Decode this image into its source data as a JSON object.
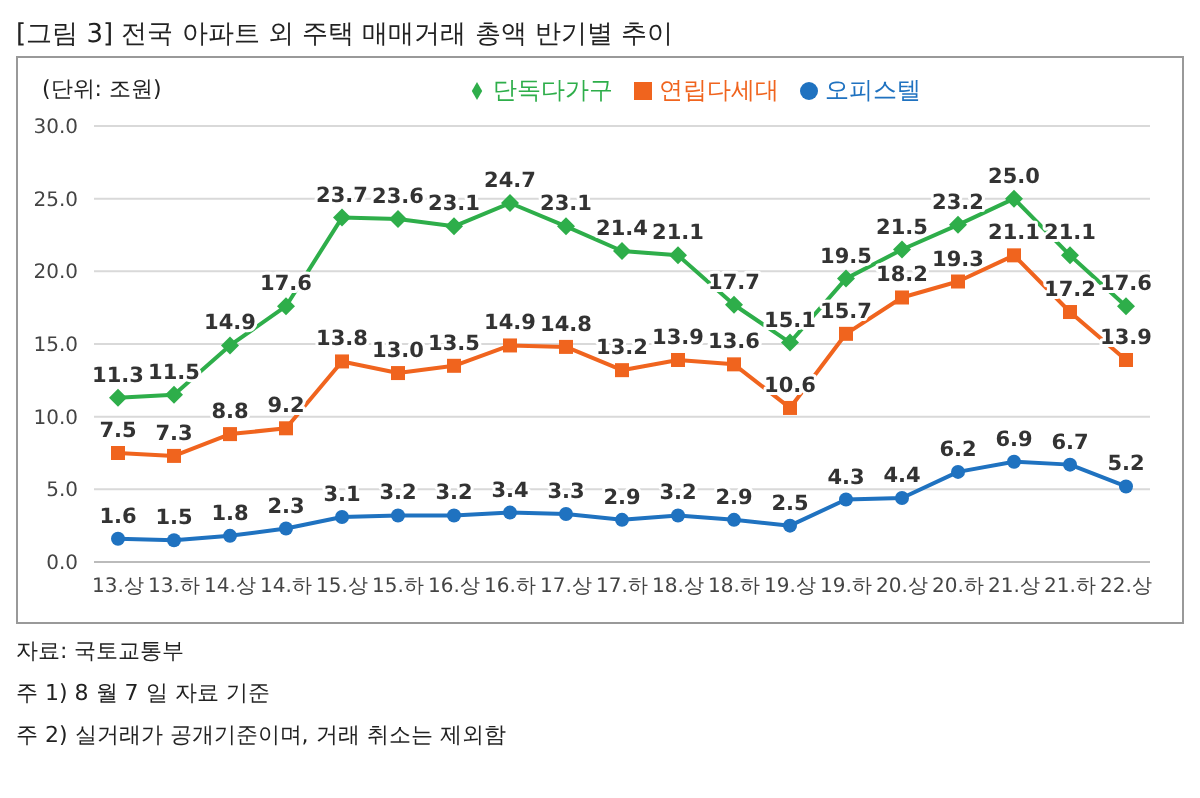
{
  "chart_data": {
    "type": "line",
    "title": "[그림 3] 전국 아파트 외 주택 매매거래 총액 반기별 추이",
    "annotations": [
      "(단위: 조원)",
      "자료: 국토교통부",
      "주 1) 8 월 7 일 자료 기준",
      "주 2) 실거래가 공개기준이며, 거래 취소는 제외함"
    ],
    "categories": [
      "13.상",
      "13.하",
      "14.상",
      "14.하",
      "15.상",
      "15.하",
      "16.상",
      "16.하",
      "17.상",
      "17.하",
      "18.상",
      "18.하",
      "19.상",
      "19.하",
      "20.상",
      "20.하",
      "21.상",
      "21.하",
      "22.상"
    ],
    "series": [
      {
        "name": "단독다가구",
        "color": "#2eae4a",
        "marker": "diamond",
        "values": [
          11.3,
          11.5,
          14.9,
          17.6,
          23.7,
          23.6,
          23.1,
          24.7,
          23.1,
          21.4,
          21.1,
          17.7,
          15.1,
          19.5,
          21.5,
          23.2,
          25.0,
          21.1,
          17.6
        ],
        "value_labels": [
          "11.3",
          "11.5",
          "14.9",
          "17.6",
          "23.7",
          "23.6",
          "23.1",
          "24.7",
          "23.1",
          "21.4",
          "21.1",
          "17.7",
          "15.1",
          "19.5",
          "21.5",
          "23.2",
          "25.0",
          "21.1",
          "17.6"
        ]
      },
      {
        "name": "연립다세대",
        "color": "#f0641e",
        "marker": "square",
        "values": [
          7.5,
          7.3,
          8.8,
          9.2,
          13.8,
          13.0,
          13.5,
          14.9,
          14.8,
          13.2,
          13.9,
          13.6,
          10.6,
          15.7,
          18.2,
          19.3,
          21.1,
          17.2,
          13.9
        ],
        "value_labels": [
          "7.5",
          "7.3",
          "8.8",
          "9.2",
          "13.8",
          "13.0",
          "13.5",
          "14.9",
          "14.8",
          "13.2",
          "13.9",
          "13.6",
          "10.6",
          "15.7",
          "18.2",
          "19.3",
          "21.1",
          "17.2",
          "13.9"
        ]
      },
      {
        "name": "오피스텔",
        "color": "#1f72c0",
        "marker": "circle",
        "values": [
          1.6,
          1.5,
          1.8,
          2.3,
          3.1,
          3.2,
          3.2,
          3.4,
          3.3,
          2.9,
          3.2,
          2.9,
          2.5,
          4.3,
          4.4,
          6.2,
          6.9,
          6.7,
          5.2
        ],
        "value_labels": [
          "1.6",
          "1.5",
          "1.8",
          "2.3",
          "3.1",
          "3.2",
          "3.2",
          "3.4",
          "3.3",
          "2.9",
          "3.2",
          "2.9",
          "2.5",
          "4.3",
          "4.4",
          "6.2",
          "6.9",
          "6.7",
          "5.2"
        ]
      }
    ],
    "ylim": [
      0,
      30
    ],
    "yticks": [
      {
        "value": 0,
        "label": "0.0"
      },
      {
        "value": 5,
        "label": "5.0"
      },
      {
        "value": 10,
        "label": "10.0"
      },
      {
        "value": 15,
        "label": "15.0"
      },
      {
        "value": 20,
        "label": "20.0"
      },
      {
        "value": 25,
        "label": "25.0"
      },
      {
        "value": 30,
        "label": "30.0"
      }
    ],
    "grid": "y",
    "legend": "top",
    "line_style": "solid"
  }
}
